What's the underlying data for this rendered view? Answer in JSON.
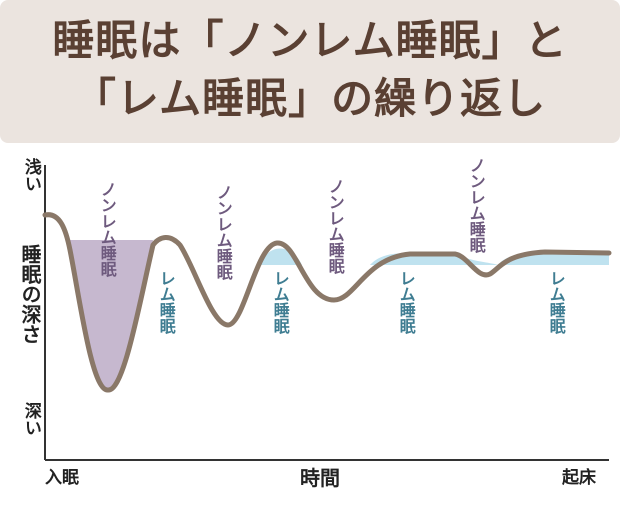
{
  "title": {
    "line1": "睡眠は「ノンレム睡眠」と",
    "line2": "「レム睡眠」の繰り返し"
  },
  "y_axis": {
    "top_label": "浅い",
    "title": "睡眠の深さ",
    "bottom_label": "深い"
  },
  "x_axis": {
    "start_label": "入眠",
    "title": "時間",
    "end_label": "起床"
  },
  "stage_labels": {
    "nrem": "ノンレム睡眠",
    "rem": "レム睡眠"
  },
  "colors": {
    "header_bg": "#ebe4df",
    "title_text": "#5a4033",
    "curve": "#8a7868",
    "nrem_fill": "#c6b8cf",
    "rem_fill": "#bfe2ef",
    "nrem_text": "#6e5a7e",
    "rem_text": "#3f7d92"
  }
}
